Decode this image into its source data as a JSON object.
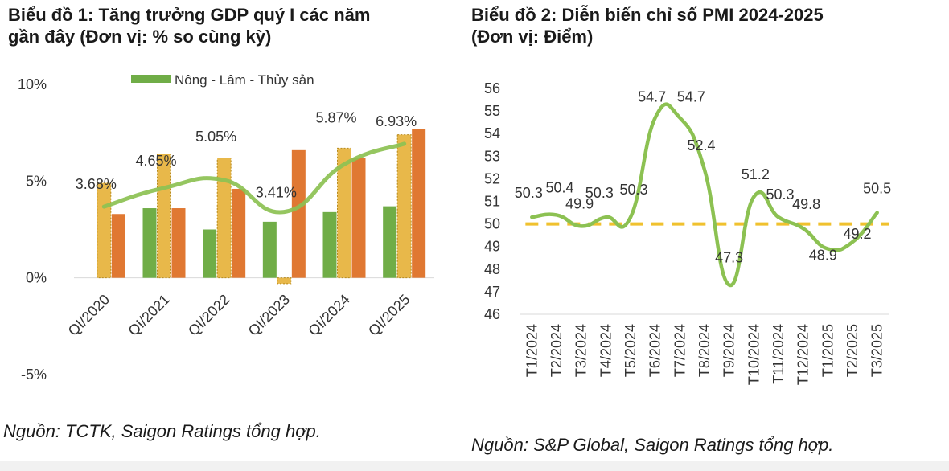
{
  "left": {
    "title_line1": "Biểu đồ 1: Tăng trưởng GDP quý I các năm",
    "title_line2": "gần đây (Đơn vị: % so cùng kỳ)",
    "source": "Nguồn: TCTK, Saigon Ratings tổng hợp."
  },
  "right": {
    "title_line1": "Biểu đồ 2: Diễn biến chỉ số PMI 2024-2025",
    "title_line2": "(Đơn vị: Điểm)",
    "source": "Nguồn: S&P Global, Saigon Ratings tổng hợp."
  },
  "chart_data": [
    {
      "type": "bar",
      "title": "Biểu đồ 1: Tăng trưởng GDP quý I các năm gần đây (Đơn vị: % so cùng kỳ)",
      "categories": [
        "QI/2020",
        "QI/2021",
        "QI/2022",
        "QI/2023",
        "QI/2024",
        "QI/2025"
      ],
      "ylim": [
        -5,
        10
      ],
      "y_ticks": [
        "10%",
        "5%",
        "0%",
        "-5%"
      ],
      "y_tick_values": [
        10,
        5,
        0,
        -5
      ],
      "grid": false,
      "legend_position": "top",
      "legend": [
        "Nông - Lâm - Thủy sản"
      ],
      "series": [
        {
          "name": "Nông - Lâm - Thủy sản",
          "type": "bar",
          "color": "#70ad47",
          "values": [
            null,
            3.6,
            2.5,
            2.9,
            3.4,
            3.7
          ]
        },
        {
          "type": "bar",
          "color": "#e8b84a",
          "values": [
            4.9,
            6.4,
            6.2,
            -0.3,
            6.7,
            7.4
          ]
        },
        {
          "type": "bar",
          "color": "#e07832",
          "values": [
            3.3,
            3.6,
            4.6,
            6.6,
            6.2,
            7.7
          ]
        },
        {
          "type": "line",
          "color": "#8cc152",
          "values": [
            3.68,
            4.65,
            5.05,
            3.41,
            5.87,
            6.93
          ],
          "labels": [
            "3.68%",
            "4.65%",
            "5.05%",
            "3.41%",
            "5.87%",
            "6.93%"
          ]
        }
      ]
    },
    {
      "type": "line",
      "title": "Biểu đồ 2: Diễn biến chỉ số PMI 2024-2025 (Đơn vị: Điểm)",
      "categories": [
        "T1/2024",
        "T2/2024",
        "T3/2024",
        "T4/2024",
        "T5/2024",
        "T6/2024",
        "T7/2024",
        "T8/2024",
        "T9/2024",
        "T10/2024",
        "T11/2024",
        "T12/2024",
        "T1/2025",
        "T2/2025",
        "T3/2025"
      ],
      "ylim": [
        46,
        56
      ],
      "y_ticks": [
        "56",
        "55",
        "54",
        "53",
        "52",
        "51",
        "50",
        "49",
        "48",
        "47",
        "46"
      ],
      "y_tick_values": [
        56,
        55,
        54,
        53,
        52,
        51,
        50,
        49,
        48,
        47,
        46
      ],
      "grid": false,
      "series": [
        {
          "type": "line",
          "color": "#8cc152",
          "values": [
            50.3,
            50.4,
            49.9,
            50.3,
            50.3,
            54.7,
            54.7,
            52.4,
            47.3,
            51.2,
            50.3,
            49.8,
            48.9,
            49.2,
            50.5
          ],
          "labels": [
            "50.3",
            "50.4",
            "49.9",
            "50.3",
            "50.3",
            "54.7",
            "54.7",
            "52.4",
            "47.3",
            "51.2",
            "50.3",
            "49.8",
            "48.9",
            "49.2",
            "50.5"
          ]
        },
        {
          "type": "line",
          "style": "dashed",
          "color": "#f0c12e",
          "values": [
            50,
            50,
            50,
            50,
            50,
            50,
            50,
            50,
            50,
            50,
            50,
            50,
            50,
            50,
            50
          ]
        }
      ]
    }
  ]
}
